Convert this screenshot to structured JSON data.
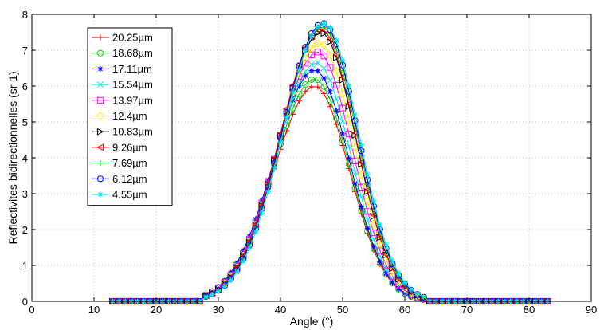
{
  "chart_data": {
    "type": "line",
    "title": "",
    "xlabel": "Angle (°)",
    "ylabel": "Reflectivites bidirectionnelles (sr-1)",
    "xlim": [
      0,
      90
    ],
    "ylim": [
      0,
      8
    ],
    "xticks": [
      0,
      10,
      20,
      30,
      40,
      50,
      60,
      70,
      80,
      90
    ],
    "yticks": [
      0,
      1,
      2,
      3,
      4,
      5,
      6,
      7,
      8
    ],
    "grid": true,
    "legend_position": "top-left",
    "x": {
      "start": 13,
      "end": 83,
      "step": 1
    },
    "curve_shape": {
      "onset": 28,
      "end": 63,
      "left_width": 6.6,
      "right_width": 5.6
    },
    "series": [
      {
        "name": "20.25µm",
        "color": "#ff0000",
        "marker": "plus",
        "peak_x": 45.5,
        "peak_y": 6.0
      },
      {
        "name": "18.68µm",
        "color": "#00cc00",
        "marker": "circle",
        "peak_x": 45.5,
        "peak_y": 6.2
      },
      {
        "name": "17.11µm",
        "color": "#0000ff",
        "marker": "star",
        "peak_x": 45.5,
        "peak_y": 6.45
      },
      {
        "name": "15.54µm",
        "color": "#00e5e5",
        "marker": "x",
        "peak_x": 45.8,
        "peak_y": 6.65
      },
      {
        "name": "13.97µm",
        "color": "#ff00ff",
        "marker": "square",
        "peak_x": 46.0,
        "peak_y": 6.95
      },
      {
        "name": "12.4µm",
        "color": "#ffee00",
        "marker": "diamond",
        "peak_x": 46.3,
        "peak_y": 7.2
      },
      {
        "name": "10.83µm",
        "color": "#000000",
        "marker": "triangle-right",
        "peak_x": 46.5,
        "peak_y": 7.5
      },
      {
        "name": "9.26µm",
        "color": "#ff0000",
        "marker": "triangle-left",
        "peak_x": 46.5,
        "peak_y": 7.6
      },
      {
        "name": "7.69µm",
        "color": "#00cc00",
        "marker": "plus",
        "peak_x": 46.7,
        "peak_y": 7.65
      },
      {
        "name": "6.12µm",
        "color": "#0000ff",
        "marker": "circle",
        "peak_x": 46.8,
        "peak_y": 7.75
      },
      {
        "name": "4.55µm",
        "color": "#00e5e5",
        "marker": "star",
        "peak_x": 47.0,
        "peak_y": 7.75
      }
    ]
  }
}
